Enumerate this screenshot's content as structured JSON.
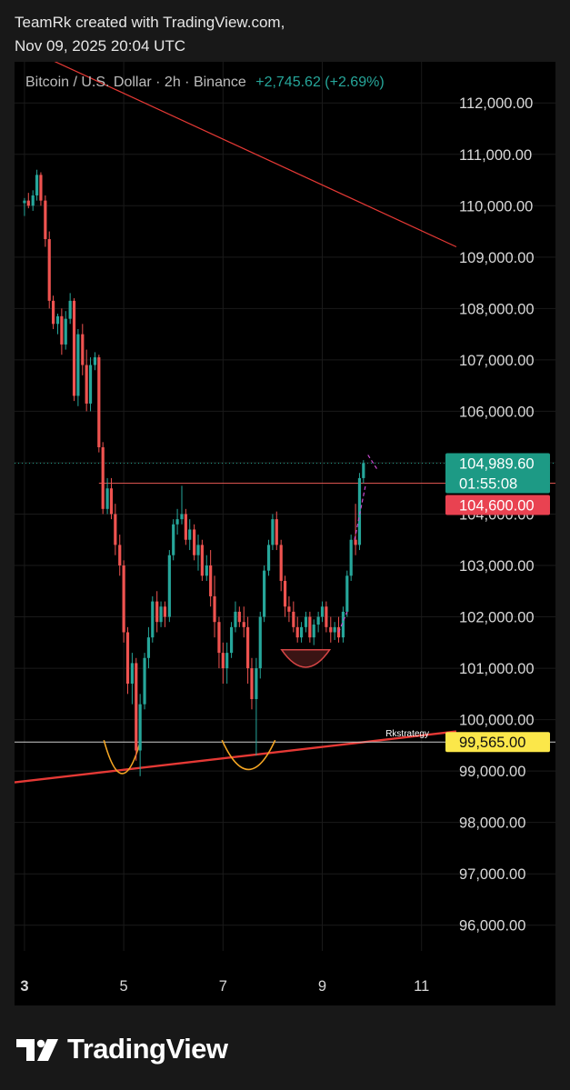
{
  "attribution": {
    "line1": "TeamRk created with TradingView.com,",
    "line2": "Nov 09, 2025 20:04 UTC"
  },
  "header": {
    "symbol": "Bitcoin / U.S. Dollar · 2h · Binance",
    "change": "+2,745.62 (+2.69%)"
  },
  "brand": {
    "name": "TradingView"
  },
  "colors": {
    "up": "#26a69a",
    "down": "#ef5350",
    "trendline": "#e53935",
    "arc": "#f5a623",
    "support_tag": "#fbe74a",
    "resistance_tag": "#e94251",
    "price_tag": "#1d9a85",
    "background": "#000000"
  },
  "chart_data": {
    "type": "candlestick",
    "symbol": "Bitcoin / U.S. Dollar",
    "interval": "2h",
    "exchange": "Binance",
    "xlim": [
      2.8,
      11.5
    ],
    "ylim": [
      95500,
      112800
    ],
    "x_ticks": [
      3,
      5,
      7,
      9,
      11
    ],
    "x_tick_labels": [
      "3",
      "5",
      "7",
      "9",
      "11"
    ],
    "y_ticks": [
      96000,
      97000,
      98000,
      99000,
      100000,
      101000,
      102000,
      103000,
      104000,
      105000,
      106000,
      107000,
      108000,
      109000,
      110000,
      111000,
      112000
    ],
    "y_tick_labels": [
      "96,000.00",
      "97,000.00",
      "98,000.00",
      "99,000.00",
      "100,000.00",
      "101,000.00",
      "102,000.00",
      "103,000.00",
      "104,000.00",
      "105,000.00",
      "106,000.00",
      "107,000.00",
      "108,000.00",
      "109,000.00",
      "110,000.00",
      "111,000.00",
      "112,000.00"
    ],
    "grid": true,
    "last_price": {
      "value": 104989.6,
      "label": "104,989.60",
      "countdown": "01:55:08"
    },
    "horizontal_levels": [
      {
        "value": 104600,
        "label": "104,600.00"
      },
      {
        "value": 99565,
        "label": "99,565.00",
        "annotation": "Rkstrategy"
      }
    ],
    "trendlines": [
      {
        "from": [
          3.4,
          112900
        ],
        "to": [
          11.7,
          109200
        ]
      },
      {
        "from": [
          2.8,
          98780
        ],
        "to": [
          11.7,
          99770
        ]
      }
    ],
    "arcs": [
      {
        "x0": 4.6,
        "x1": 5.34,
        "top": 99600,
        "bottom": 98950
      },
      {
        "x0": 6.98,
        "x1": 8.05,
        "top": 99600,
        "bottom": 99030
      },
      {
        "x0": 8.18,
        "x1": 9.15,
        "top": 101360,
        "bottom": 101020
      }
    ],
    "candles": [
      [
        3.0,
        110050,
        110150,
        109800,
        110100
      ],
      [
        3.08,
        110100,
        110250,
        109950,
        110000
      ],
      [
        3.17,
        110000,
        110300,
        109900,
        110200
      ],
      [
        3.25,
        110200,
        110700,
        110100,
        110600
      ],
      [
        3.33,
        110600,
        110650,
        110000,
        110100
      ],
      [
        3.42,
        110100,
        110200,
        109200,
        109350
      ],
      [
        3.5,
        109350,
        109500,
        108000,
        108150
      ],
      [
        3.58,
        108150,
        108250,
        107600,
        107700
      ],
      [
        3.67,
        107700,
        107900,
        107500,
        107850
      ],
      [
        3.75,
        107850,
        108000,
        107100,
        107300
      ],
      [
        3.83,
        107300,
        107950,
        107200,
        107800
      ],
      [
        3.92,
        107800,
        108300,
        107700,
        108150
      ],
      [
        4.0,
        108150,
        108200,
        106200,
        106300
      ],
      [
        4.08,
        106300,
        107600,
        106100,
        107500
      ],
      [
        4.17,
        107500,
        107700,
        106700,
        106900
      ],
      [
        4.25,
        106900,
        107200,
        106000,
        106150
      ],
      [
        4.33,
        106150,
        107050,
        106000,
        106900
      ],
      [
        4.42,
        106900,
        107150,
        106800,
        107050
      ],
      [
        4.5,
        107050,
        107100,
        105200,
        105300
      ],
      [
        4.58,
        105300,
        105400,
        104000,
        104100
      ],
      [
        4.67,
        104100,
        104700,
        104000,
        104500
      ],
      [
        4.75,
        104500,
        104700,
        103900,
        104000
      ],
      [
        4.83,
        104000,
        104200,
        103200,
        103400
      ],
      [
        4.92,
        103400,
        103600,
        102800,
        103000
      ],
      [
        5.0,
        103000,
        103100,
        101500,
        101700
      ],
      [
        5.08,
        101700,
        101800,
        100500,
        100700
      ],
      [
        5.17,
        100700,
        101300,
        100300,
        101100
      ],
      [
        5.25,
        101100,
        101200,
        99200,
        99400
      ],
      [
        5.33,
        99400,
        100500,
        98900,
        100300
      ],
      [
        5.42,
        100300,
        101300,
        100200,
        101200
      ],
      [
        5.5,
        101200,
        101800,
        101000,
        101600
      ],
      [
        5.58,
        101600,
        102400,
        101500,
        102300
      ],
      [
        5.67,
        102300,
        102500,
        101700,
        101900
      ],
      [
        5.75,
        101900,
        102300,
        101800,
        102200
      ],
      [
        5.83,
        102200,
        102300,
        101800,
        102000
      ],
      [
        5.92,
        102000,
        103300,
        101900,
        103200
      ],
      [
        6.0,
        103200,
        103900,
        103100,
        103800
      ],
      [
        6.08,
        103800,
        104100,
        103600,
        103900
      ],
      [
        6.17,
        103900,
        104550,
        103800,
        104000
      ],
      [
        6.25,
        104000,
        104100,
        103400,
        103500
      ],
      [
        6.33,
        103500,
        103900,
        103300,
        103700
      ],
      [
        6.42,
        103700,
        103800,
        103100,
        103200
      ],
      [
        6.5,
        103200,
        103600,
        102900,
        103400
      ],
      [
        6.58,
        103400,
        103500,
        102700,
        102800
      ],
      [
        6.67,
        102800,
        103200,
        102700,
        103000
      ],
      [
        6.75,
        103000,
        103300,
        102200,
        102400
      ],
      [
        6.83,
        102400,
        102800,
        101600,
        101900
      ],
      [
        6.92,
        101900,
        102000,
        101000,
        101300
      ],
      [
        7.0,
        101300,
        101500,
        100700,
        101000
      ],
      [
        7.08,
        101000,
        101500,
        100700,
        101300
      ],
      [
        7.17,
        101300,
        101900,
        101200,
        101800
      ],
      [
        7.25,
        101800,
        102300,
        101700,
        102100
      ],
      [
        7.33,
        102100,
        102200,
        101800,
        101900
      ],
      [
        7.42,
        101900,
        102200,
        101600,
        101800
      ],
      [
        7.5,
        101800,
        102000,
        100700,
        101000
      ],
      [
        7.58,
        101000,
        101200,
        100200,
        100400
      ],
      [
        7.67,
        100400,
        101200,
        99300,
        101000
      ],
      [
        7.75,
        101000,
        102100,
        100800,
        102000
      ],
      [
        7.83,
        102000,
        103000,
        101900,
        102900
      ],
      [
        7.92,
        102900,
        103500,
        102800,
        103400
      ],
      [
        8.0,
        103400,
        104000,
        103300,
        103900
      ],
      [
        8.08,
        103900,
        104050,
        103300,
        103400
      ],
      [
        8.17,
        103400,
        103500,
        102500,
        102700
      ],
      [
        8.25,
        102700,
        102800,
        102000,
        102200
      ],
      [
        8.33,
        102200,
        102400,
        101900,
        102100
      ],
      [
        8.42,
        102100,
        102300,
        101700,
        101800
      ],
      [
        8.5,
        101800,
        102000,
        101500,
        101600
      ],
      [
        8.58,
        101600,
        101900,
        101500,
        101800
      ],
      [
        8.67,
        101800,
        102100,
        101700,
        102000
      ],
      [
        8.75,
        102000,
        102100,
        101500,
        101600
      ],
      [
        8.83,
        101600,
        101950,
        101450,
        101850
      ],
      [
        8.92,
        101850,
        102100,
        101700,
        102000
      ],
      [
        9.0,
        102000,
        102300,
        101900,
        102200
      ],
      [
        9.08,
        102200,
        102300,
        101700,
        101800
      ],
      [
        9.17,
        101800,
        102000,
        101500,
        101700
      ],
      [
        9.25,
        101700,
        101900,
        101550,
        101800
      ],
      [
        9.33,
        101800,
        102000,
        101500,
        101600
      ],
      [
        9.42,
        101600,
        102200,
        101500,
        102100
      ],
      [
        9.5,
        102100,
        102900,
        102000,
        102800
      ],
      [
        9.58,
        102800,
        103600,
        102700,
        103500
      ],
      [
        9.67,
        103500,
        104200,
        103200,
        103400
      ],
      [
        9.75,
        103400,
        104800,
        103300,
        104700
      ],
      [
        9.83,
        104700,
        105050,
        104600,
        104990
      ]
    ]
  }
}
